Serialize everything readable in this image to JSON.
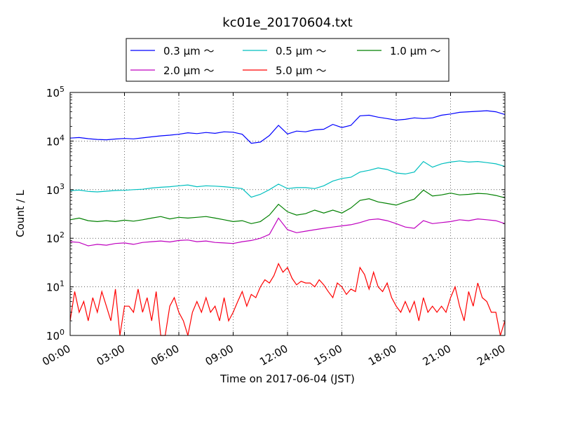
{
  "chart_data": {
    "type": "line",
    "title": "kc01e_20170604.txt",
    "xlabel": "Time on 2017-06-04 (JST)",
    "ylabel": "Count / L",
    "x_range_hours": [
      0,
      24
    ],
    "x_ticks": [
      {
        "h": 0,
        "label": "00:00"
      },
      {
        "h": 3,
        "label": "03:00"
      },
      {
        "h": 6,
        "label": "06:00"
      },
      {
        "h": 9,
        "label": "09:00"
      },
      {
        "h": 12,
        "label": "12:00"
      },
      {
        "h": 15,
        "label": "15:00"
      },
      {
        "h": 18,
        "label": "18:00"
      },
      {
        "h": 21,
        "label": "21:00"
      },
      {
        "h": 24,
        "label": "24:00"
      }
    ],
    "y_scale": "log",
    "y_range": [
      1,
      100000
    ],
    "y_ticks": [
      {
        "v": 1,
        "base": "10",
        "exp": "0"
      },
      {
        "v": 10,
        "base": "10",
        "exp": "1"
      },
      {
        "v": 100,
        "base": "10",
        "exp": "2"
      },
      {
        "v": 1000,
        "base": "10",
        "exp": "3"
      },
      {
        "v": 10000,
        "base": "10",
        "exp": "4"
      },
      {
        "v": 100000,
        "base": "10",
        "exp": "5"
      }
    ],
    "grid": true,
    "legend_position": "top-center",
    "series": [
      {
        "name": "0.3 μm ～",
        "color": "#0000ff",
        "points": [
          [
            0,
            11500
          ],
          [
            0.5,
            11800
          ],
          [
            1,
            11200
          ],
          [
            1.5,
            10800
          ],
          [
            2,
            10600
          ],
          [
            2.5,
            11000
          ],
          [
            3,
            11300
          ],
          [
            3.5,
            11100
          ],
          [
            4,
            11600
          ],
          [
            4.5,
            12200
          ],
          [
            5,
            12800
          ],
          [
            5.5,
            13200
          ],
          [
            6,
            13800
          ],
          [
            6.5,
            14800
          ],
          [
            7,
            14200
          ],
          [
            7.5,
            15000
          ],
          [
            8,
            14400
          ],
          [
            8.5,
            15500
          ],
          [
            9,
            15200
          ],
          [
            9.5,
            13800
          ],
          [
            10,
            9000
          ],
          [
            10.5,
            9500
          ],
          [
            11,
            13000
          ],
          [
            11.5,
            21000
          ],
          [
            12,
            14000
          ],
          [
            12.5,
            16000
          ],
          [
            13,
            15500
          ],
          [
            13.5,
            17000
          ],
          [
            14,
            17500
          ],
          [
            14.5,
            22000
          ],
          [
            15,
            19000
          ],
          [
            15.5,
            21000
          ],
          [
            16,
            33000
          ],
          [
            16.5,
            34000
          ],
          [
            17,
            31000
          ],
          [
            17.5,
            29000
          ],
          [
            18,
            27000
          ],
          [
            18.5,
            28000
          ],
          [
            19,
            30000
          ],
          [
            19.5,
            29000
          ],
          [
            20,
            30000
          ],
          [
            20.5,
            34000
          ],
          [
            21,
            36000
          ],
          [
            21.5,
            39000
          ],
          [
            22,
            40000
          ],
          [
            22.5,
            41000
          ],
          [
            23,
            42000
          ],
          [
            23.5,
            40000
          ],
          [
            24,
            35000
          ]
        ]
      },
      {
        "name": "0.5 μm ～",
        "color": "#00bfbf",
        "points": [
          [
            0,
            950
          ],
          [
            0.5,
            980
          ],
          [
            1,
            920
          ],
          [
            1.5,
            900
          ],
          [
            2,
            930
          ],
          [
            2.5,
            960
          ],
          [
            3,
            970
          ],
          [
            3.5,
            1000
          ],
          [
            4,
            1020
          ],
          [
            4.5,
            1080
          ],
          [
            5,
            1120
          ],
          [
            5.5,
            1150
          ],
          [
            6,
            1200
          ],
          [
            6.5,
            1250
          ],
          [
            7,
            1150
          ],
          [
            7.5,
            1200
          ],
          [
            8,
            1180
          ],
          [
            8.5,
            1150
          ],
          [
            9,
            1100
          ],
          [
            9.5,
            1050
          ],
          [
            10,
            700
          ],
          [
            10.5,
            800
          ],
          [
            11,
            1000
          ],
          [
            11.5,
            1300
          ],
          [
            12,
            1050
          ],
          [
            12.5,
            1100
          ],
          [
            13,
            1100
          ],
          [
            13.5,
            1050
          ],
          [
            14,
            1200
          ],
          [
            14.5,
            1500
          ],
          [
            15,
            1700
          ],
          [
            15.5,
            1800
          ],
          [
            16,
            2300
          ],
          [
            16.5,
            2500
          ],
          [
            17,
            2800
          ],
          [
            17.5,
            2600
          ],
          [
            18,
            2200
          ],
          [
            18.5,
            2100
          ],
          [
            19,
            2300
          ],
          [
            19.5,
            3800
          ],
          [
            20,
            2900
          ],
          [
            20.5,
            3400
          ],
          [
            21,
            3700
          ],
          [
            21.5,
            3900
          ],
          [
            22,
            3700
          ],
          [
            22.5,
            3800
          ],
          [
            23,
            3600
          ],
          [
            23.5,
            3400
          ],
          [
            24,
            3000
          ]
        ]
      },
      {
        "name": "1.0 μm ～",
        "color": "#008000",
        "points": [
          [
            0,
            240
          ],
          [
            0.5,
            260
          ],
          [
            1,
            230
          ],
          [
            1.5,
            220
          ],
          [
            2,
            230
          ],
          [
            2.5,
            220
          ],
          [
            3,
            235
          ],
          [
            3.5,
            225
          ],
          [
            4,
            240
          ],
          [
            4.5,
            260
          ],
          [
            5,
            280
          ],
          [
            5.5,
            250
          ],
          [
            6,
            270
          ],
          [
            6.5,
            260
          ],
          [
            7,
            270
          ],
          [
            7.5,
            280
          ],
          [
            8,
            260
          ],
          [
            8.5,
            240
          ],
          [
            9,
            220
          ],
          [
            9.5,
            230
          ],
          [
            10,
            200
          ],
          [
            10.5,
            220
          ],
          [
            11,
            300
          ],
          [
            11.5,
            500
          ],
          [
            12,
            350
          ],
          [
            12.5,
            300
          ],
          [
            13,
            320
          ],
          [
            13.5,
            380
          ],
          [
            14,
            330
          ],
          [
            14.5,
            380
          ],
          [
            15,
            330
          ],
          [
            15.5,
            420
          ],
          [
            16,
            600
          ],
          [
            16.5,
            650
          ],
          [
            17,
            560
          ],
          [
            17.5,
            520
          ],
          [
            18,
            480
          ],
          [
            18.5,
            560
          ],
          [
            19,
            640
          ],
          [
            19.5,
            980
          ],
          [
            20,
            740
          ],
          [
            20.5,
            780
          ],
          [
            21,
            850
          ],
          [
            21.5,
            780
          ],
          [
            22,
            800
          ],
          [
            22.5,
            840
          ],
          [
            23,
            820
          ],
          [
            23.5,
            760
          ],
          [
            24,
            680
          ]
        ]
      },
      {
        "name": "2.0 μm ～",
        "color": "#bf00bf",
        "points": [
          [
            0,
            85
          ],
          [
            0.5,
            82
          ],
          [
            1,
            70
          ],
          [
            1.5,
            75
          ],
          [
            2,
            72
          ],
          [
            2.5,
            78
          ],
          [
            3,
            80
          ],
          [
            3.5,
            75
          ],
          [
            4,
            82
          ],
          [
            4.5,
            85
          ],
          [
            5,
            88
          ],
          [
            5.5,
            84
          ],
          [
            6,
            90
          ],
          [
            6.5,
            92
          ],
          [
            7,
            85
          ],
          [
            7.5,
            88
          ],
          [
            8,
            82
          ],
          [
            8.5,
            80
          ],
          [
            9,
            78
          ],
          [
            9.5,
            85
          ],
          [
            10,
            90
          ],
          [
            10.5,
            100
          ],
          [
            11,
            120
          ],
          [
            11.5,
            260
          ],
          [
            12,
            150
          ],
          [
            12.5,
            130
          ],
          [
            13,
            140
          ],
          [
            13.5,
            150
          ],
          [
            14,
            160
          ],
          [
            14.5,
            170
          ],
          [
            15,
            180
          ],
          [
            15.5,
            190
          ],
          [
            16,
            210
          ],
          [
            16.5,
            240
          ],
          [
            17,
            250
          ],
          [
            17.5,
            230
          ],
          [
            18,
            200
          ],
          [
            18.5,
            170
          ],
          [
            19,
            160
          ],
          [
            19.5,
            230
          ],
          [
            20,
            200
          ],
          [
            20.5,
            210
          ],
          [
            21,
            220
          ],
          [
            21.5,
            240
          ],
          [
            22,
            230
          ],
          [
            22.5,
            250
          ],
          [
            23,
            240
          ],
          [
            23.5,
            230
          ],
          [
            24,
            200
          ]
        ]
      },
      {
        "name": "5.0 μm ～",
        "color": "#ff0000",
        "points": [
          [
            0,
            2
          ],
          [
            0.25,
            8
          ],
          [
            0.5,
            3
          ],
          [
            0.75,
            5
          ],
          [
            1,
            2
          ],
          [
            1.25,
            6
          ],
          [
            1.5,
            3
          ],
          [
            1.75,
            8
          ],
          [
            2,
            4
          ],
          [
            2.25,
            2
          ],
          [
            2.5,
            9
          ],
          [
            2.75,
            1
          ],
          [
            3,
            4
          ],
          [
            3.25,
            4
          ],
          [
            3.5,
            3
          ],
          [
            3.75,
            9
          ],
          [
            4,
            3
          ],
          [
            4.25,
            6
          ],
          [
            4.5,
            2
          ],
          [
            4.75,
            8
          ],
          [
            5,
            1
          ],
          [
            5.25,
            1
          ],
          [
            5.5,
            4
          ],
          [
            5.75,
            6
          ],
          [
            6,
            3
          ],
          [
            6.25,
            2
          ],
          [
            6.5,
            1
          ],
          [
            6.75,
            3
          ],
          [
            7,
            5
          ],
          [
            7.25,
            3
          ],
          [
            7.5,
            6
          ],
          [
            7.75,
            3
          ],
          [
            8,
            4
          ],
          [
            8.25,
            2
          ],
          [
            8.5,
            6
          ],
          [
            8.75,
            2
          ],
          [
            9,
            3
          ],
          [
            9.25,
            5
          ],
          [
            9.5,
            8
          ],
          [
            9.75,
            4
          ],
          [
            10,
            7
          ],
          [
            10.25,
            6
          ],
          [
            10.5,
            10
          ],
          [
            10.75,
            14
          ],
          [
            11,
            12
          ],
          [
            11.25,
            17
          ],
          [
            11.5,
            30
          ],
          [
            11.75,
            20
          ],
          [
            12,
            25
          ],
          [
            12.25,
            15
          ],
          [
            12.5,
            11
          ],
          [
            12.75,
            13
          ],
          [
            13,
            12
          ],
          [
            13.25,
            12
          ],
          [
            13.5,
            10
          ],
          [
            13.75,
            14
          ],
          [
            14,
            11
          ],
          [
            14.25,
            8
          ],
          [
            14.5,
            6
          ],
          [
            14.75,
            12
          ],
          [
            15,
            10
          ],
          [
            15.25,
            7
          ],
          [
            15.5,
            9
          ],
          [
            15.75,
            8
          ],
          [
            16,
            25
          ],
          [
            16.25,
            18
          ],
          [
            16.5,
            9
          ],
          [
            16.75,
            20
          ],
          [
            17,
            10
          ],
          [
            17.25,
            8
          ],
          [
            17.5,
            12
          ],
          [
            17.75,
            6
          ],
          [
            18,
            4
          ],
          [
            18.25,
            3
          ],
          [
            18.5,
            5
          ],
          [
            18.75,
            3
          ],
          [
            19,
            5
          ],
          [
            19.25,
            2
          ],
          [
            19.5,
            6
          ],
          [
            19.75,
            3
          ],
          [
            20,
            4
          ],
          [
            20.25,
            3
          ],
          [
            20.5,
            4
          ],
          [
            20.75,
            3
          ],
          [
            21,
            6
          ],
          [
            21.25,
            10
          ],
          [
            21.5,
            4
          ],
          [
            21.75,
            2
          ],
          [
            22,
            8
          ],
          [
            22.25,
            4
          ],
          [
            22.5,
            12
          ],
          [
            22.75,
            6
          ],
          [
            23,
            5
          ],
          [
            23.25,
            3
          ],
          [
            23.5,
            3
          ],
          [
            23.75,
            1
          ],
          [
            24,
            2
          ]
        ]
      }
    ]
  }
}
